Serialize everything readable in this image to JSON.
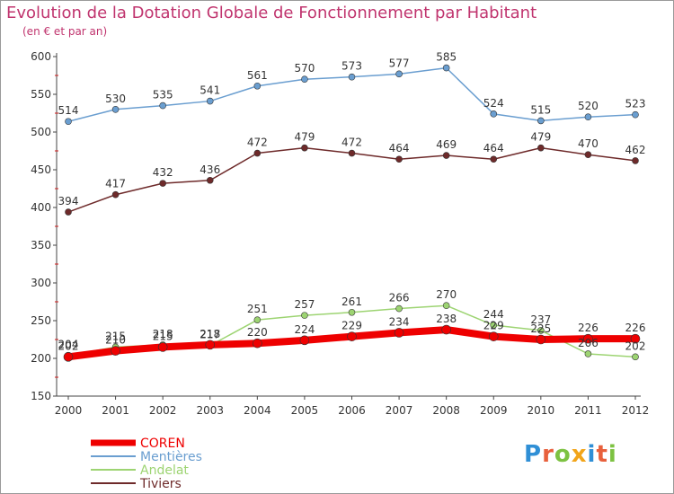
{
  "title": "Evolution de la Dotation Globale de Fonctionnement par Habitant",
  "subtitle": "(en € et par an)",
  "logo": {
    "text": "Proxiti",
    "letters": [
      "P",
      "r",
      "o",
      "x",
      "i",
      "t",
      "i"
    ],
    "colors": [
      "#2f8fd6",
      "#e8603c",
      "#7dc242",
      "#f2a51a",
      "#2f8fd6",
      "#e8603c",
      "#7dc242"
    ]
  },
  "chart_data": {
    "type": "line",
    "title": "Evolution de la Dotation Globale de Fonctionnement par Habitant",
    "subtitle": "(en € et par an)",
    "xlabel": "",
    "ylabel": "",
    "x": [
      "2000",
      "2001",
      "2002",
      "2003",
      "2004",
      "2005",
      "2006",
      "2007",
      "2008",
      "2009",
      "2010",
      "2011",
      "2012"
    ],
    "ylim": [
      150,
      600
    ],
    "yticks": [
      150,
      200,
      250,
      300,
      350,
      400,
      450,
      500,
      550,
      600
    ],
    "grid": false,
    "legend_position": "bottom-left",
    "series": [
      {
        "name": "COREN",
        "color": "#ee0000",
        "width": 8,
        "values": [
          202,
          210,
          215,
          218,
          220,
          224,
          229,
          234,
          238,
          229,
          225,
          226,
          226
        ]
      },
      {
        "name": "Mentières",
        "color": "#6a9ed0",
        "width": 1.5,
        "values": [
          514,
          530,
          535,
          541,
          561,
          570,
          573,
          577,
          585,
          524,
          515,
          520,
          523
        ]
      },
      {
        "name": "Andelat",
        "color": "#9dd472",
        "width": 1.5,
        "values": [
          204,
          215,
          218,
          217,
          251,
          257,
          261,
          266,
          270,
          244,
          237,
          206,
          202
        ]
      },
      {
        "name": "Tiviers",
        "color": "#6e2a2a",
        "width": 1.5,
        "values": [
          394,
          417,
          432,
          436,
          472,
          479,
          472,
          464,
          469,
          464,
          479,
          470,
          462
        ]
      }
    ]
  }
}
